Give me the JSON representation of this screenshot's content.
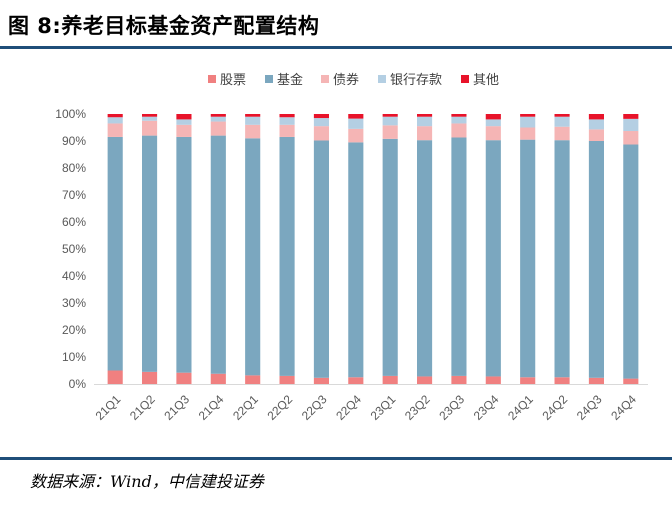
{
  "figure": {
    "title": "图 8:养老目标基金资产配置结构",
    "source": "数据来源：Wind，中信建投证券"
  },
  "chart_data": {
    "type": "bar",
    "stacked": true,
    "categories": [
      "21Q1",
      "21Q2",
      "21Q3",
      "21Q4",
      "22Q1",
      "22Q2",
      "22Q3",
      "22Q4",
      "23Q1",
      "23Q2",
      "23Q3",
      "23Q4",
      "24Q1",
      "24Q2",
      "24Q3",
      "24Q4"
    ],
    "series": [
      {
        "name": "股票",
        "color": "#f08080",
        "values": [
          5.0,
          4.5,
          4.2,
          3.8,
          3.2,
          3.0,
          2.3,
          2.5,
          3.0,
          2.8,
          3.0,
          2.8,
          2.5,
          2.5,
          2.3,
          2.0
        ]
      },
      {
        "name": "基金",
        "color": "#7ba7bf",
        "values": [
          86.5,
          87.5,
          87.3,
          88.2,
          87.8,
          88.5,
          87.9,
          87.0,
          87.8,
          87.5,
          88.3,
          87.5,
          88.0,
          87.8,
          87.7,
          86.7
        ]
      },
      {
        "name": "债券",
        "color": "#f5b5b5",
        "values": [
          5.0,
          5.5,
          4.5,
          5.2,
          5.0,
          4.5,
          5.3,
          5.0,
          5.0,
          5.2,
          5.2,
          5.2,
          4.5,
          5.0,
          4.3,
          5.0
        ]
      },
      {
        "name": "银行存款",
        "color": "#b4cfe3",
        "values": [
          2.3,
          1.5,
          2.0,
          1.8,
          3.0,
          2.8,
          3.0,
          3.8,
          3.2,
          3.5,
          2.5,
          2.5,
          4.0,
          3.7,
          3.7,
          4.5
        ]
      },
      {
        "name": "其他",
        "color": "#e8132a",
        "values": [
          1.2,
          1.0,
          2.0,
          1.0,
          1.0,
          1.2,
          1.5,
          1.7,
          1.0,
          1.0,
          1.0,
          2.0,
          1.0,
          1.0,
          2.0,
          1.8
        ]
      }
    ],
    "yticks": [
      "0%",
      "10%",
      "20%",
      "30%",
      "40%",
      "50%",
      "60%",
      "70%",
      "80%",
      "90%",
      "100%"
    ],
    "ylim": [
      0,
      100
    ],
    "legend_position": "top",
    "grid": false
  }
}
